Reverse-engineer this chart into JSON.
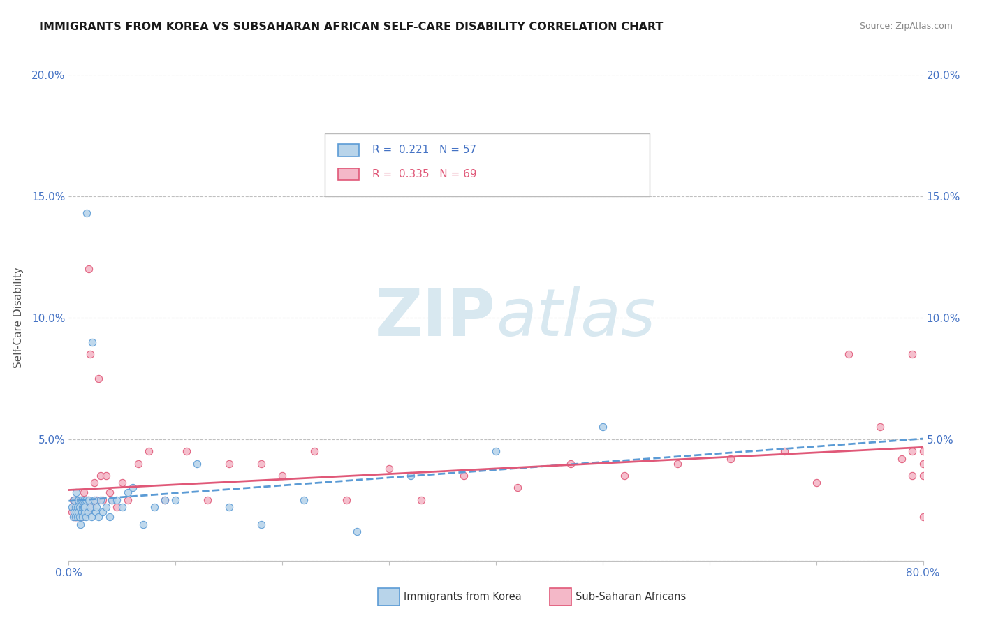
{
  "title": "IMMIGRANTS FROM KOREA VS SUBSAHARAN AFRICAN SELF-CARE DISABILITY CORRELATION CHART",
  "source": "Source: ZipAtlas.com",
  "ylabel": "Self-Care Disability",
  "xlim": [
    0,
    0.8
  ],
  "ylim": [
    0,
    0.2
  ],
  "xticks": [
    0.0,
    0.1,
    0.2,
    0.3,
    0.4,
    0.5,
    0.6,
    0.7,
    0.8
  ],
  "xticklabels": [
    "0.0%",
    "",
    "",
    "",
    "",
    "",
    "",
    "",
    "80.0%"
  ],
  "yticks": [
    0.0,
    0.05,
    0.1,
    0.15,
    0.2
  ],
  "yticklabels_left": [
    "",
    "5.0%",
    "10.0%",
    "15.0%",
    "20.0%"
  ],
  "yticklabels_right": [
    "",
    "5.0%",
    "10.0%",
    "15.0%",
    "20.0%"
  ],
  "korea_R": 0.221,
  "korea_N": 57,
  "africa_R": 0.335,
  "africa_N": 69,
  "korea_color": "#b8d4ea",
  "korea_edge_color": "#5b9bd5",
  "africa_color": "#f4b8c8",
  "africa_edge_color": "#e05878",
  "korea_line_color": "#5b9bd5",
  "africa_line_color": "#e05878",
  "grid_color": "#c0c0c0",
  "background_color": "#ffffff",
  "title_color": "#1a1a1a",
  "axis_label_color": "#555555",
  "tick_color": "#4472c4",
  "right_tick_color": "#4472c4",
  "source_color": "#888888",
  "watermark_color": "#d8e8f0",
  "legend_label_korea": "Immigrants from Korea",
  "legend_label_africa": "Sub-Saharan Africans",
  "korea_x": [
    0.003,
    0.004,
    0.005,
    0.005,
    0.006,
    0.006,
    0.007,
    0.007,
    0.008,
    0.008,
    0.009,
    0.009,
    0.01,
    0.01,
    0.011,
    0.011,
    0.012,
    0.012,
    0.013,
    0.013,
    0.014,
    0.014,
    0.015,
    0.015,
    0.016,
    0.016,
    0.017,
    0.018,
    0.019,
    0.02,
    0.021,
    0.022,
    0.024,
    0.025,
    0.026,
    0.028,
    0.03,
    0.032,
    0.035,
    0.038,
    0.04,
    0.045,
    0.05,
    0.055,
    0.06,
    0.07,
    0.08,
    0.09,
    0.1,
    0.12,
    0.15,
    0.18,
    0.22,
    0.27,
    0.32,
    0.4,
    0.5
  ],
  "korea_y": [
    0.022,
    0.018,
    0.025,
    0.02,
    0.022,
    0.018,
    0.028,
    0.02,
    0.022,
    0.018,
    0.025,
    0.02,
    0.022,
    0.018,
    0.025,
    0.015,
    0.02,
    0.025,
    0.022,
    0.018,
    0.022,
    0.025,
    0.02,
    0.022,
    0.018,
    0.025,
    0.143,
    0.02,
    0.025,
    0.022,
    0.018,
    0.09,
    0.025,
    0.02,
    0.022,
    0.018,
    0.025,
    0.02,
    0.022,
    0.018,
    0.025,
    0.025,
    0.022,
    0.028,
    0.03,
    0.015,
    0.022,
    0.025,
    0.025,
    0.04,
    0.022,
    0.015,
    0.025,
    0.012,
    0.035,
    0.045,
    0.055
  ],
  "africa_x": [
    0.003,
    0.004,
    0.005,
    0.005,
    0.006,
    0.006,
    0.007,
    0.007,
    0.008,
    0.008,
    0.009,
    0.009,
    0.01,
    0.01,
    0.011,
    0.011,
    0.012,
    0.012,
    0.013,
    0.013,
    0.014,
    0.015,
    0.016,
    0.017,
    0.018,
    0.019,
    0.02,
    0.022,
    0.024,
    0.026,
    0.028,
    0.03,
    0.032,
    0.035,
    0.038,
    0.04,
    0.045,
    0.05,
    0.055,
    0.065,
    0.075,
    0.09,
    0.11,
    0.13,
    0.15,
    0.18,
    0.2,
    0.23,
    0.26,
    0.3,
    0.33,
    0.37,
    0.42,
    0.47,
    0.52,
    0.57,
    0.62,
    0.67,
    0.7,
    0.73,
    0.76,
    0.78,
    0.79,
    0.79,
    0.79,
    0.8,
    0.8,
    0.8,
    0.8
  ],
  "africa_y": [
    0.02,
    0.025,
    0.022,
    0.018,
    0.025,
    0.018,
    0.022,
    0.018,
    0.025,
    0.018,
    0.022,
    0.02,
    0.025,
    0.018,
    0.022,
    0.018,
    0.025,
    0.018,
    0.022,
    0.02,
    0.028,
    0.022,
    0.025,
    0.02,
    0.025,
    0.12,
    0.085,
    0.022,
    0.032,
    0.025,
    0.075,
    0.035,
    0.025,
    0.035,
    0.028,
    0.025,
    0.022,
    0.032,
    0.025,
    0.04,
    0.045,
    0.025,
    0.045,
    0.025,
    0.04,
    0.04,
    0.035,
    0.045,
    0.025,
    0.038,
    0.025,
    0.035,
    0.03,
    0.04,
    0.035,
    0.04,
    0.042,
    0.045,
    0.032,
    0.085,
    0.055,
    0.042,
    0.035,
    0.085,
    0.045,
    0.04,
    0.018,
    0.035,
    0.045
  ]
}
